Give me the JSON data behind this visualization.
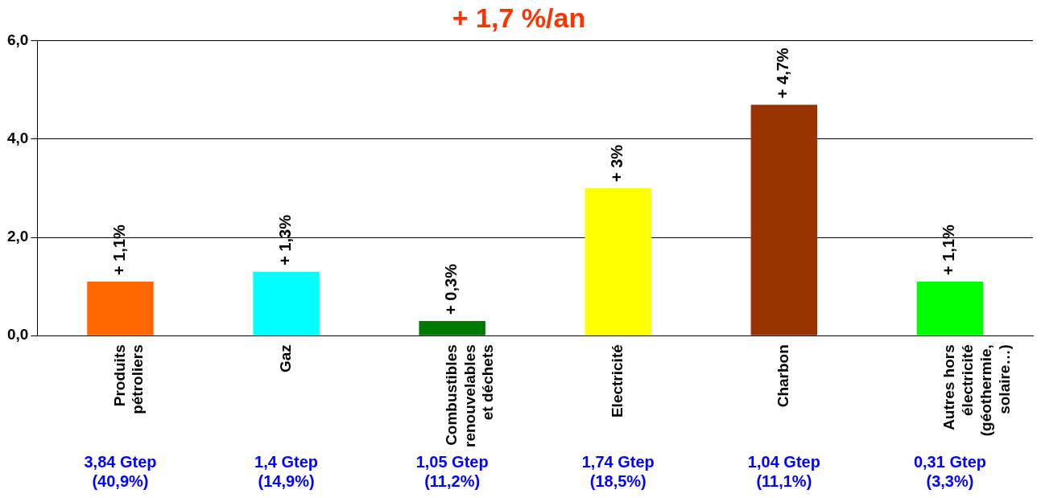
{
  "chart_data": {
    "type": "bar",
    "title": "+ 1,7 %/an",
    "categories": [
      "Produits pétroliers",
      "Gaz",
      "Combustibles renouvelables et déchets",
      "Electricité",
      "Charbon",
      "Autres hors électricité (géothermie, solaire…)"
    ],
    "values": [
      1.1,
      1.3,
      0.3,
      3.0,
      4.7,
      1.1
    ],
    "colors": [
      "#ff6600",
      "#00ffff",
      "#007a00",
      "#ffff00",
      "#993300",
      "#00ff00"
    ],
    "value_labels": [
      "+ 1,1%",
      "+ 1,3%",
      "+ 0,3%",
      "+ 3%",
      "+ 4,7%",
      "+ 1,1%"
    ],
    "ylim": [
      0,
      6
    ],
    "yticks": [
      {
        "value": 0,
        "label": "0,0"
      },
      {
        "value": 2,
        "label": "2,0"
      },
      {
        "value": 4,
        "label": "4,0"
      },
      {
        "value": 6,
        "label": "6,0"
      }
    ],
    "grid": "y",
    "legend": false,
    "annotations": [
      "3,84 Gtep (40,9%)",
      "1,4 Gtep (14,9%)",
      "1,05 Gtep (11,2%)",
      "1,74 Gtep (18,5%)",
      "1,04 Gtep (11,1%)",
      "0,31 Gtep (3,3%)"
    ]
  }
}
